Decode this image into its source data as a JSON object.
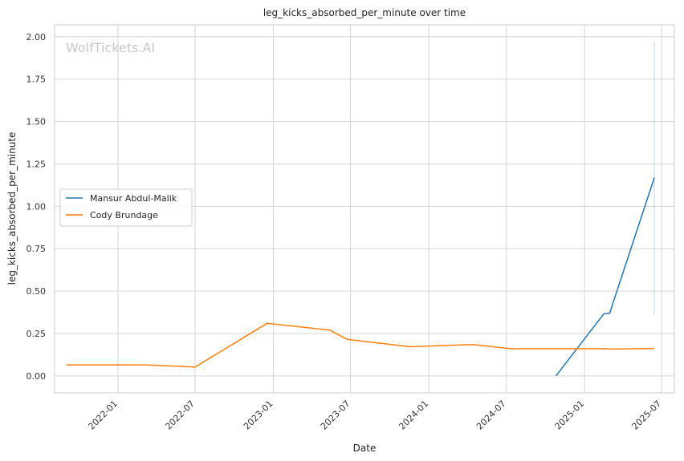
{
  "chart_data": {
    "type": "line",
    "title": "leg_kicks_absorbed_per_minute over time",
    "xlabel": "Date",
    "ylabel": "leg_kicks_absorbed_per_minute",
    "watermark": "WolfTickets.AI",
    "x_range": [
      "2021-08-05",
      "2025-07-31"
    ],
    "ylim": [
      -0.1,
      2.07
    ],
    "x_ticks": [
      "2022-01",
      "2022-07",
      "2023-01",
      "2023-07",
      "2024-01",
      "2024-07",
      "2025-01",
      "2025-07"
    ],
    "y_ticks": [
      "0.00",
      "0.25",
      "0.50",
      "0.75",
      "1.00",
      "1.25",
      "1.50",
      "1.75",
      "2.00"
    ],
    "grid": true,
    "legend_position": "center-left",
    "series": [
      {
        "name": "Mansur Abdul-Malik",
        "color": "#1f77b4",
        "x": [
          "2024-10-26",
          "2025-02-15",
          "2025-03-01",
          "2025-06-14"
        ],
        "y": [
          0.0,
          0.365,
          0.37,
          1.17
        ],
        "band": {
          "x": "2025-06-14",
          "low": 0.36,
          "high": 1.97,
          "color": "#1f77b4"
        }
      },
      {
        "name": "Cody Brundage",
        "color": "#ff7f0e",
        "x": [
          "2021-09-01",
          "2022-03-05",
          "2022-07-01",
          "2022-12-17",
          "2023-05-13",
          "2023-06-24",
          "2023-11-18",
          "2024-04-13",
          "2024-07-13",
          "2025-02-22",
          "2025-03-01",
          "2025-06-14"
        ],
        "y": [
          0.065,
          0.065,
          0.052,
          0.31,
          0.27,
          0.215,
          0.172,
          0.185,
          0.16,
          0.16,
          0.158,
          0.162
        ]
      }
    ]
  }
}
